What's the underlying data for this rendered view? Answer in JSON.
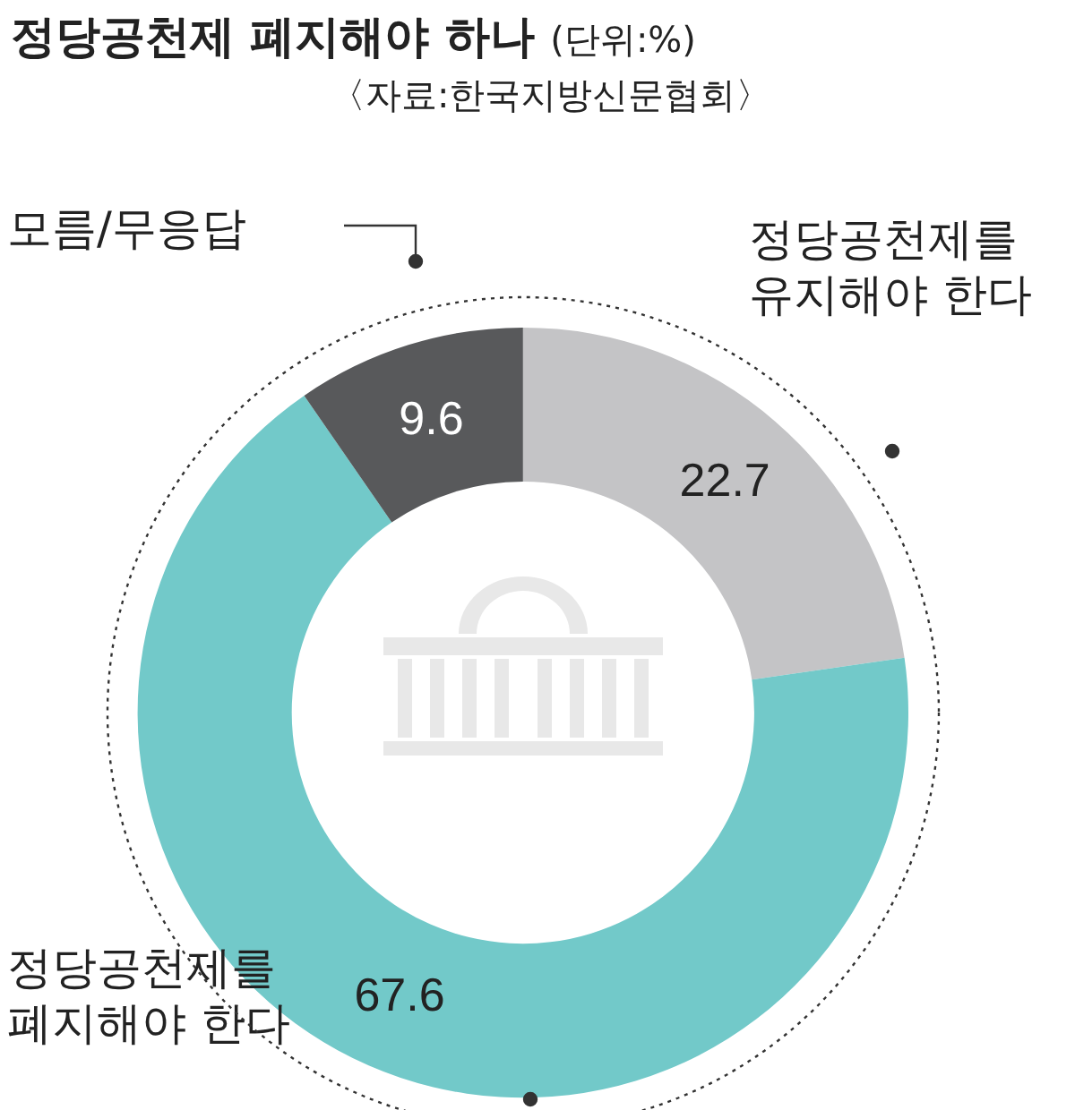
{
  "chart_data": {
    "type": "donut",
    "title": "정당공천제 폐지해야 하나",
    "subtitle": "(단위:%)",
    "annotations": [
      "〈자료:한국지방신문협회〉"
    ],
    "categories": [
      "정당공천제를 유지해야 한다",
      "정당공천제를 폐지해야 한다",
      "모름/무응답"
    ],
    "values": [
      22.7,
      67.6,
      9.6
    ],
    "colors": [
      "#c4c4c6",
      "#72c9c9",
      "#58595b"
    ],
    "data_labels": true
  }
}
